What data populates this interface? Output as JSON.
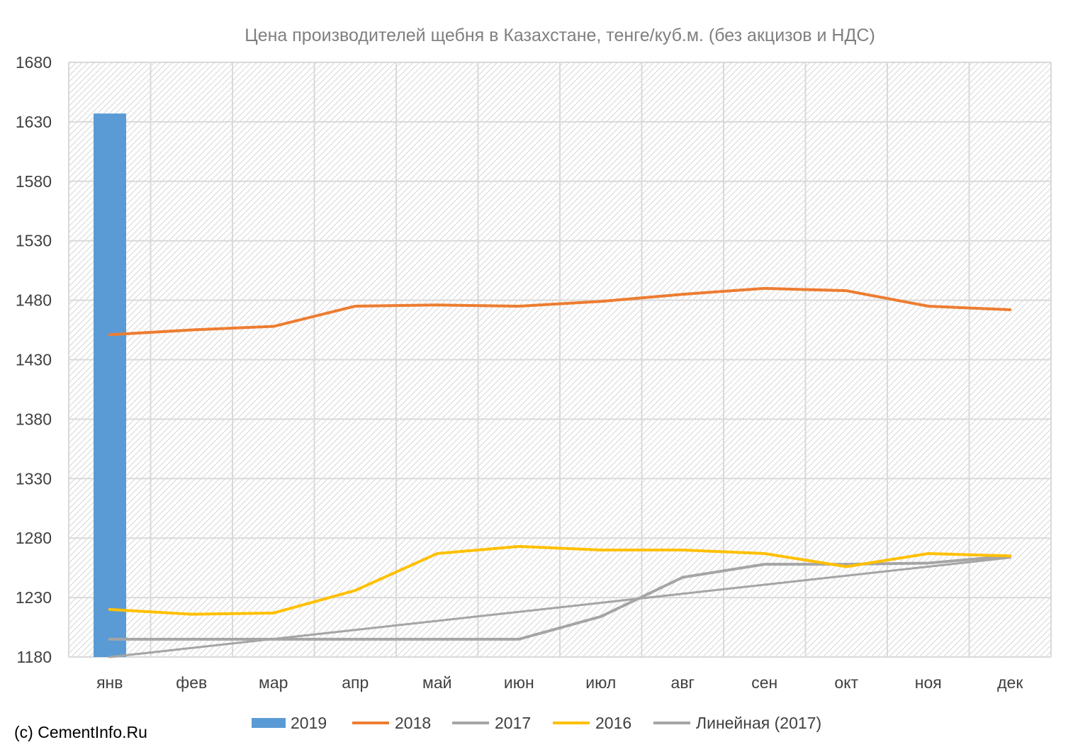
{
  "chart_data": {
    "type": "bar+line",
    "title": "Цена производителей щебня в Казахстане, тенге/куб.м. (без акцизов и НДС)",
    "categories": [
      "янв",
      "фев",
      "мар",
      "апр",
      "май",
      "июн",
      "июл",
      "авг",
      "сен",
      "окт",
      "ноя",
      "дек"
    ],
    "y_ticks": [
      "1680",
      "1630",
      "1580",
      "1530",
      "1480",
      "1430",
      "1380",
      "1330",
      "1280",
      "1230",
      "1180"
    ],
    "ylim": [
      1180,
      1680
    ],
    "grid": true,
    "legend_position": "bottom",
    "series": [
      {
        "name": "2019",
        "kind": "bar",
        "color": "#5b9bd5",
        "values": [
          1637,
          null,
          null,
          null,
          null,
          null,
          null,
          null,
          null,
          null,
          null,
          null
        ]
      },
      {
        "name": "2018",
        "kind": "line",
        "color": "#ed7d31",
        "values": [
          1451,
          1455,
          1458,
          1475,
          1476,
          1475,
          1479,
          1485,
          1490,
          1488,
          1475,
          1472
        ]
      },
      {
        "name": "2017",
        "kind": "line",
        "color": "#a5a5a5",
        "values": [
          1195,
          1195,
          1195,
          1195,
          1195,
          1195,
          1214,
          1247,
          1258,
          1258,
          1259,
          1265
        ]
      },
      {
        "name": "2016",
        "kind": "line",
        "color": "#ffc000",
        "values": [
          1220,
          1216,
          1217,
          1236,
          1267,
          1273,
          1270,
          1270,
          1267,
          1256,
          1267,
          1265
        ]
      },
      {
        "name": "Линейная (2017)",
        "kind": "trendline",
        "color": "#a5a5a5",
        "values": [
          1180,
          1187.6,
          1195.2,
          1202.8,
          1210.4,
          1218,
          1225.6,
          1233.2,
          1240.8,
          1248.4,
          1256,
          1263.6
        ]
      }
    ]
  },
  "credit": "(c) CementInfo.Ru"
}
